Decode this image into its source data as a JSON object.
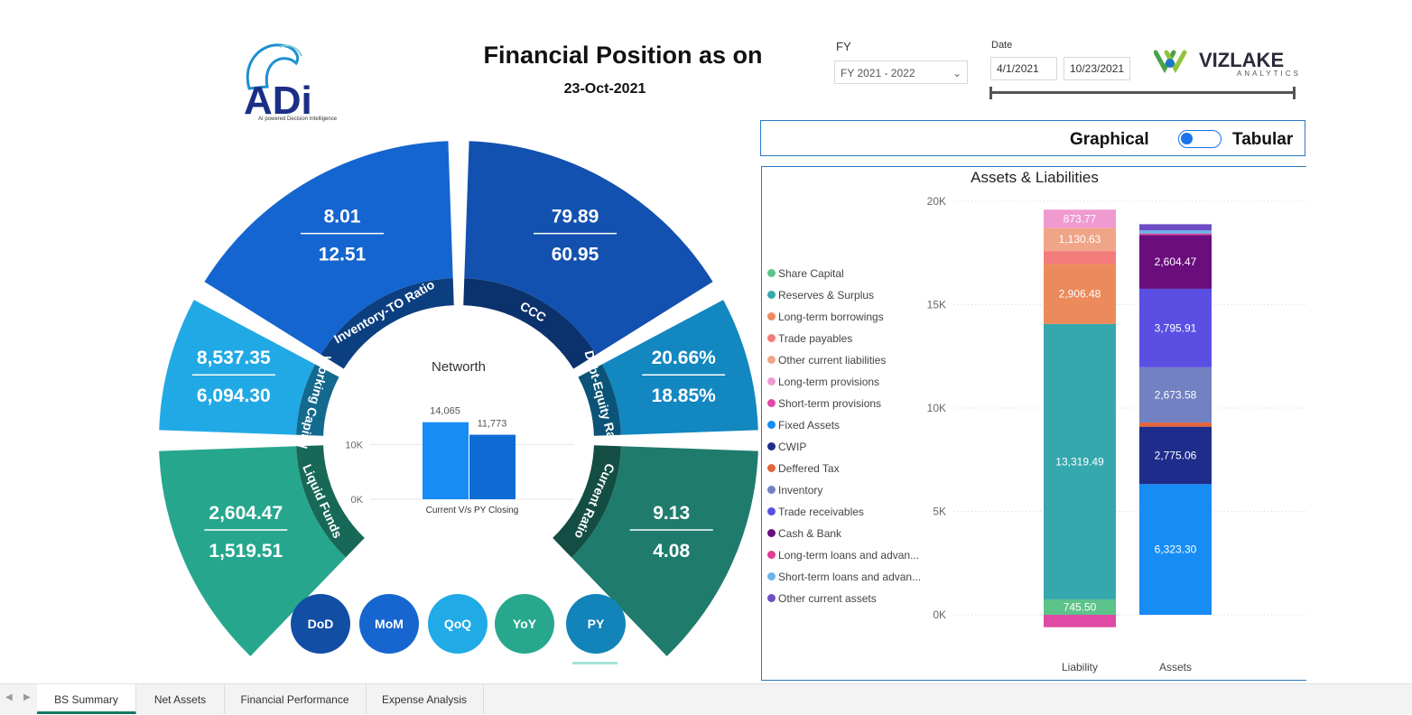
{
  "header": {
    "logo_text": "ADi",
    "logo_tagline": "AI powered Decision Intelligence",
    "title": "Financial Position as on",
    "date": "23-Oct-2021",
    "fy_label": "FY",
    "fy_value": "FY 2021 - 2022",
    "date_label": "Date",
    "date_start": "4/1/2021",
    "date_end": "10/23/2021",
    "brand_name": "VIZLAKE",
    "brand_sub": "ANALYTICS"
  },
  "toggle": {
    "left_label": "Graphical",
    "right_label": "Tabular",
    "on": false
  },
  "wheel": {
    "segments": [
      {
        "label": "Inventory-TO Ratio",
        "current": "8.01",
        "previous": "12.51",
        "color": "#1465cf"
      },
      {
        "label": "CCC",
        "current": "79.89",
        "previous": "60.95",
        "color": "#1351b0"
      },
      {
        "label": "Debt-Equity Ratio",
        "current": "20.66%",
        "previous": "18.85%",
        "color": "#1287c0"
      },
      {
        "label": "Current Ratio",
        "current": "9.13",
        "previous": "4.08",
        "color": "#1f7c6c"
      },
      {
        "label": "Liquid Funds",
        "current": "2,604.47",
        "previous": "1,519.51",
        "color": "#26a78d"
      },
      {
        "label": "Working Capital",
        "current": "8,537.35",
        "previous": "6,094.30",
        "color": "#21a9e6"
      }
    ],
    "networth": {
      "title": "Networth",
      "xlabel": "Current V/s PY Closing",
      "ticks": [
        "10K",
        "0K"
      ],
      "current": 14065,
      "previous": 11773,
      "current_label": "14,065",
      "previous_label": "11,773"
    },
    "buttons": [
      {
        "label": "DoD",
        "color": "#124ea4"
      },
      {
        "label": "MoM",
        "color": "#1766cf"
      },
      {
        "label": "QoQ",
        "color": "#20aae6"
      },
      {
        "label": "YoY",
        "color": "#27a88d"
      },
      {
        "label": "PY",
        "color": "#1284b9"
      }
    ]
  },
  "chart_data": {
    "type": "bar",
    "stacked": true,
    "title": "Assets & Liabilities",
    "categories": [
      "Liability",
      "Assets"
    ],
    "ylim": [
      0,
      20000
    ],
    "yticks": [
      "20K",
      "15K",
      "10K",
      "5K",
      "0K"
    ],
    "ytick_values": [
      20000,
      15000,
      10000,
      5000,
      0
    ],
    "legend": [
      {
        "name": "Share Capital",
        "color": "#5cc38a"
      },
      {
        "name": "Reserves & Surplus",
        "color": "#35a8ae"
      },
      {
        "name": "Long-term borrowings",
        "color": "#ec8a5b"
      },
      {
        "name": "Trade payables",
        "color": "#f37b7b"
      },
      {
        "name": "Other current liabilities",
        "color": "#f0a488"
      },
      {
        "name": "Long-term provisions",
        "color": "#f09ad2"
      },
      {
        "name": "Short-term provisions",
        "color": "#e04aa6"
      },
      {
        "name": "Fixed Assets",
        "color": "#168cf4"
      },
      {
        "name": "CWIP",
        "color": "#1e2d8c"
      },
      {
        "name": "Deffered Tax",
        "color": "#e5653a"
      },
      {
        "name": "Inventory",
        "color": "#7281c2"
      },
      {
        "name": "Trade receivables",
        "color": "#5b4fe3"
      },
      {
        "name": "Cash & Bank",
        "color": "#6a0d7d"
      },
      {
        "name": "Long-term loans and advan...",
        "color": "#e13d93"
      },
      {
        "name": "Short-term loans and advan...",
        "color": "#6ab3ea"
      },
      {
        "name": "Other current assets",
        "color": "#6d4ec6"
      }
    ],
    "bars": [
      {
        "category": "Liability",
        "segments": [
          {
            "name": "Short-term provisions",
            "value": -600,
            "color": "#e04aa6",
            "label": ""
          },
          {
            "name": "Share Capital",
            "value": 745.5,
            "color": "#5cc38a",
            "label": "745.50"
          },
          {
            "name": "Reserves & Surplus",
            "value": 13319.49,
            "color": "#35a8ae",
            "label": "13,319.49"
          },
          {
            "name": "Long-term borrowings",
            "value": 2906.48,
            "color": "#ec8a5b",
            "label": "2,906.48"
          },
          {
            "name": "Trade payables",
            "value": 620,
            "color": "#f37b7b",
            "label": ""
          },
          {
            "name": "Other current liabilities",
            "value": 1130.63,
            "color": "#f0a488",
            "label": "1,130.63"
          },
          {
            "name": "Long-term provisions",
            "value": 873.77,
            "color": "#f09ad2",
            "label": "873.77"
          }
        ]
      },
      {
        "category": "Assets",
        "segments": [
          {
            "name": "Fixed Assets",
            "value": 6323.3,
            "color": "#168cf4",
            "label": "6,323.30"
          },
          {
            "name": "CWIP",
            "value": 2775.06,
            "color": "#1e2d8c",
            "label": "2,775.06"
          },
          {
            "name": "Deffered Tax",
            "value": 200,
            "color": "#e5653a",
            "label": ""
          },
          {
            "name": "Inventory",
            "value": 2673.58,
            "color": "#7281c2",
            "label": "2,673.58"
          },
          {
            "name": "Trade receivables",
            "value": 3795.91,
            "color": "#5b4fe3",
            "label": "3,795.91"
          },
          {
            "name": "Cash & Bank",
            "value": 2604.47,
            "color": "#6a0d7d",
            "label": "2,604.47"
          },
          {
            "name": "Long-term loans and advan...",
            "value": 70,
            "color": "#e13d93",
            "label": ""
          },
          {
            "name": "Short-term loans and advan...",
            "value": 150,
            "color": "#6ab3ea",
            "label": ""
          },
          {
            "name": "Other current assets",
            "value": 300,
            "color": "#6d4ec6",
            "label": ""
          }
        ]
      }
    ]
  },
  "tabs": [
    {
      "label": "BS Summary",
      "active": true
    },
    {
      "label": "Net Assets",
      "active": false
    },
    {
      "label": "Financial Performance",
      "active": false
    },
    {
      "label": "Expense Analysis",
      "active": false
    }
  ]
}
